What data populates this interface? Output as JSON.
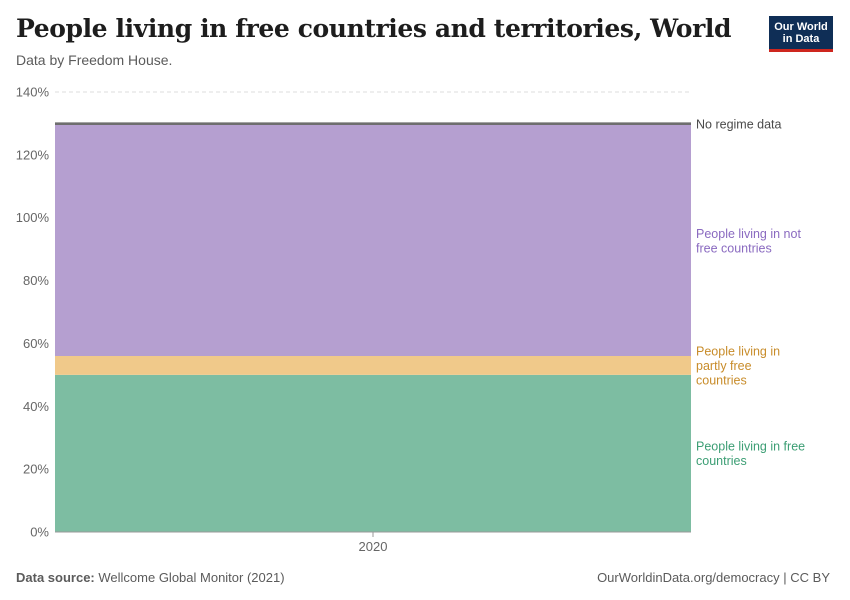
{
  "header": {
    "title": "People living in free countries and territories, World",
    "subtitle": "Data by Freedom House."
  },
  "logo": {
    "line1": "Our World",
    "line2": "in Data"
  },
  "footer": {
    "source_label": "Data source:",
    "source_value": "Wellcome Global Monitor (2021)",
    "link_text": "OurWorldinData.org/democracy",
    "separator": "|",
    "license": "CC BY"
  },
  "chart_data": {
    "type": "area",
    "stacked": true,
    "x": [
      2020
    ],
    "x_tick_labels": [
      "2020"
    ],
    "ylim": [
      0,
      140
    ],
    "y_ticks": [
      0,
      20,
      40,
      60,
      80,
      100,
      120,
      140
    ],
    "y_tick_labels": [
      "0%",
      "20%",
      "40%",
      "60%",
      "80%",
      "100%",
      "120%",
      "140%"
    ],
    "grid": "horizontal dashed",
    "legend": "right labels",
    "series": [
      {
        "name": "People living in free countries",
        "values": [
          50
        ],
        "color": "#7dbda2",
        "label_color": "#3c9e74"
      },
      {
        "name": "People living in partly free countries",
        "values": [
          6
        ],
        "color": "#f0c98a",
        "label_color": "#c88c2a"
      },
      {
        "name": "People living in not free countries",
        "values": [
          73.5
        ],
        "color": "#b59fd0",
        "label_color": "#8a6ac0"
      },
      {
        "name": "No regime data",
        "values": [
          0.5
        ],
        "color": "#6e6e6e",
        "label_color": "#4a4a4a"
      }
    ]
  }
}
